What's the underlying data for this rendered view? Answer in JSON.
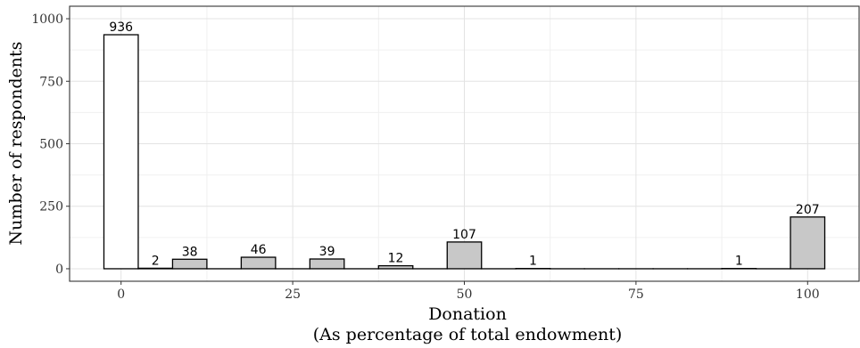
{
  "chart_data": {
    "type": "bar",
    "xlabel_line1": "Donation",
    "xlabel_line2": "(As percentage of total endowment)",
    "ylabel": "Number of respondents",
    "x_ticks": [
      0,
      25,
      50,
      75,
      100
    ],
    "y_ticks": [
      0,
      250,
      500,
      750,
      1000
    ],
    "xlim": [
      -7.5,
      107.5
    ],
    "ylim": [
      -50,
      1050
    ],
    "grid": true,
    "bin_width": 5,
    "bars": [
      {
        "x": 0,
        "value": 936,
        "fill": "#ffffff",
        "label": "936"
      },
      {
        "x": 5,
        "value": 2,
        "fill": "#c8c8c8",
        "label": "2"
      },
      {
        "x": 10,
        "value": 38,
        "fill": "#c8c8c8",
        "label": "38"
      },
      {
        "x": 15,
        "value": 0,
        "fill": "#c8c8c8",
        "label": ""
      },
      {
        "x": 20,
        "value": 46,
        "fill": "#c8c8c8",
        "label": "46"
      },
      {
        "x": 25,
        "value": 0,
        "fill": "#c8c8c8",
        "label": ""
      },
      {
        "x": 30,
        "value": 39,
        "fill": "#c8c8c8",
        "label": "39"
      },
      {
        "x": 35,
        "value": 0,
        "fill": "#c8c8c8",
        "label": ""
      },
      {
        "x": 40,
        "value": 12,
        "fill": "#c8c8c8",
        "label": "12"
      },
      {
        "x": 45,
        "value": 0,
        "fill": "#c8c8c8",
        "label": ""
      },
      {
        "x": 50,
        "value": 107,
        "fill": "#c8c8c8",
        "label": "107"
      },
      {
        "x": 55,
        "value": 0,
        "fill": "#c8c8c8",
        "label": ""
      },
      {
        "x": 60,
        "value": 1,
        "fill": "#c8c8c8",
        "label": "1"
      },
      {
        "x": 65,
        "value": 0,
        "fill": "#c8c8c8",
        "label": ""
      },
      {
        "x": 70,
        "value": 0,
        "fill": "#c8c8c8",
        "label": ""
      },
      {
        "x": 75,
        "value": 0,
        "fill": "#c8c8c8",
        "label": ""
      },
      {
        "x": 80,
        "value": 0,
        "fill": "#c8c8c8",
        "label": ""
      },
      {
        "x": 85,
        "value": 0,
        "fill": "#c8c8c8",
        "label": ""
      },
      {
        "x": 90,
        "value": 1,
        "fill": "#c8c8c8",
        "label": "1"
      },
      {
        "x": 95,
        "value": 0,
        "fill": "#c8c8c8",
        "label": ""
      },
      {
        "x": 100,
        "value": 207,
        "fill": "#c8c8c8",
        "label": "207"
      }
    ]
  }
}
